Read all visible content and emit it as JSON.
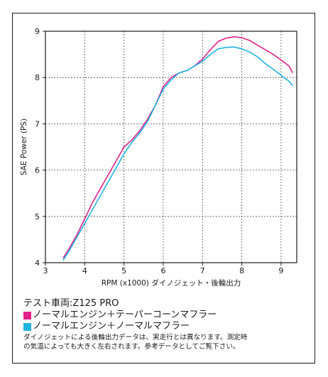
{
  "chart_data": {
    "type": "line",
    "title": "",
    "xlabel": "RPM (x1000) ダイノジェット・後輪出力",
    "ylabel": "SAE Power (PS)",
    "xlim": [
      3,
      9.4
    ],
    "ylim": [
      4,
      9
    ],
    "xticks": [
      "3",
      "4",
      "5",
      "6",
      "7",
      "8",
      "9"
    ],
    "yticks": [
      "4",
      "5",
      "6",
      "7",
      "8",
      "9"
    ],
    "grid": true,
    "series": [
      {
        "name": "ノーマルエンジン＋テーパーコーンマフラー",
        "color": "#e0218a",
        "x": [
          3.45,
          3.6,
          3.8,
          4.0,
          4.2,
          4.4,
          4.6,
          4.8,
          5.0,
          5.2,
          5.4,
          5.6,
          5.8,
          6.0,
          6.2,
          6.4,
          6.6,
          6.8,
          7.0,
          7.2,
          7.4,
          7.6,
          7.8,
          8.0,
          8.2,
          8.4,
          8.6,
          8.8,
          9.0,
          9.2,
          9.3
        ],
        "values": [
          4.1,
          4.3,
          4.6,
          4.95,
          5.3,
          5.6,
          5.9,
          6.2,
          6.5,
          6.65,
          6.85,
          7.1,
          7.4,
          7.8,
          8.0,
          8.1,
          8.15,
          8.25,
          8.4,
          8.6,
          8.78,
          8.85,
          8.88,
          8.86,
          8.8,
          8.7,
          8.6,
          8.5,
          8.38,
          8.25,
          8.1
        ]
      },
      {
        "name": "ノーマルエンジン＋ノーマルマフラー",
        "color": "#1fb3df",
        "x": [
          3.45,
          3.6,
          3.8,
          4.0,
          4.2,
          4.4,
          4.6,
          4.8,
          5.0,
          5.2,
          5.4,
          5.6,
          5.8,
          6.0,
          6.2,
          6.4,
          6.6,
          6.8,
          7.0,
          7.2,
          7.4,
          7.6,
          7.8,
          8.0,
          8.2,
          8.4,
          8.6,
          8.8,
          9.0,
          9.2,
          9.3
        ],
        "values": [
          4.05,
          4.25,
          4.55,
          4.85,
          5.15,
          5.45,
          5.75,
          6.05,
          6.35,
          6.6,
          6.8,
          7.05,
          7.4,
          7.75,
          7.95,
          8.1,
          8.15,
          8.25,
          8.35,
          8.5,
          8.62,
          8.65,
          8.66,
          8.62,
          8.55,
          8.45,
          8.3,
          8.18,
          8.05,
          7.92,
          7.82
        ]
      }
    ]
  },
  "info": {
    "test_vehicle": "テスト車両:Z125 PRO",
    "legend": [
      {
        "label": "ノーマルエンジン＋テーパーコーンマフラー",
        "color": "#e0218a"
      },
      {
        "label": "ノーマルエンジン＋ノーマルマフラー",
        "color": "#1fb3df"
      }
    ],
    "note_line1": "ダイノジェットによる後輪出力データは、実走行とは異なります。測定時",
    "note_line2": "の気温によっても大きく左右されます。参考データとしてご覧下さい。"
  }
}
